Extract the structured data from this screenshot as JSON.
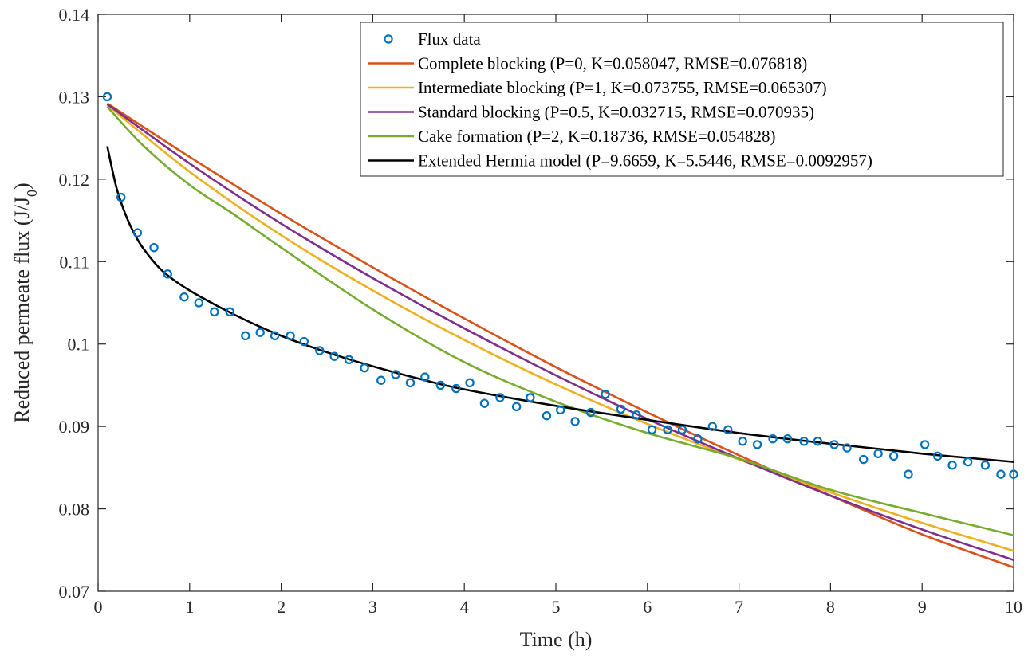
{
  "chart_data": {
    "type": "line",
    "xlabel": "Time (h)",
    "ylabel_main": "Reduced permeate flux (J/J",
    "ylabel_sub": "0",
    "ylabel_end": ")",
    "xlim": [
      0,
      10
    ],
    "ylim": [
      0.07,
      0.14
    ],
    "xticks": [
      0,
      1,
      2,
      3,
      4,
      5,
      6,
      7,
      8,
      9,
      10
    ],
    "yticks": [
      0.07,
      0.08,
      0.09,
      0.1,
      0.11,
      0.12,
      0.13,
      0.14
    ],
    "xtick_labels": [
      "0",
      "1",
      "2",
      "3",
      "4",
      "5",
      "6",
      "7",
      "8",
      "9",
      "10"
    ],
    "ytick_labels": [
      "0.07",
      "0.08",
      "0.09",
      "0.1",
      "0.11",
      "0.12",
      "0.13",
      "0.14"
    ],
    "grid": false,
    "legend_position": "top-right",
    "scatter": {
      "name": "Flux data",
      "color": "#0072BD",
      "points": [
        [
          0.1,
          0.13
        ],
        [
          0.25,
          0.1178
        ],
        [
          0.43,
          0.1135
        ],
        [
          0.61,
          0.1117
        ],
        [
          0.76,
          0.1085
        ],
        [
          0.94,
          0.1057
        ],
        [
          1.1,
          0.105
        ],
        [
          1.27,
          0.1039
        ],
        [
          1.44,
          0.1039
        ],
        [
          1.61,
          0.101
        ],
        [
          1.77,
          0.1014
        ],
        [
          1.93,
          0.101
        ],
        [
          2.1,
          0.101
        ],
        [
          2.25,
          0.1003
        ],
        [
          2.42,
          0.0992
        ],
        [
          2.58,
          0.0985
        ],
        [
          2.74,
          0.0981
        ],
        [
          2.91,
          0.0971
        ],
        [
          3.09,
          0.0956
        ],
        [
          3.25,
          0.0963
        ],
        [
          3.41,
          0.0953
        ],
        [
          3.57,
          0.096
        ],
        [
          3.74,
          0.095
        ],
        [
          3.91,
          0.0946
        ],
        [
          4.06,
          0.0953
        ],
        [
          4.22,
          0.0928
        ],
        [
          4.39,
          0.0935
        ],
        [
          4.57,
          0.0924
        ],
        [
          4.72,
          0.0935
        ],
        [
          4.9,
          0.0913
        ],
        [
          5.05,
          0.092
        ],
        [
          5.21,
          0.0906
        ],
        [
          5.38,
          0.0917
        ],
        [
          5.54,
          0.0939
        ],
        [
          5.71,
          0.0921
        ],
        [
          5.88,
          0.0914
        ],
        [
          6.05,
          0.0896
        ],
        [
          6.22,
          0.0896
        ],
        [
          6.38,
          0.0896
        ],
        [
          6.55,
          0.0885
        ],
        [
          6.71,
          0.09
        ],
        [
          6.88,
          0.0896
        ],
        [
          7.04,
          0.0882
        ],
        [
          7.2,
          0.0878
        ],
        [
          7.37,
          0.0885
        ],
        [
          7.53,
          0.0885
        ],
        [
          7.71,
          0.0882
        ],
        [
          7.86,
          0.0882
        ],
        [
          8.04,
          0.0878
        ],
        [
          8.18,
          0.0874
        ],
        [
          8.36,
          0.086
        ],
        [
          8.52,
          0.0867
        ],
        [
          8.69,
          0.0864
        ],
        [
          8.85,
          0.0842
        ],
        [
          9.03,
          0.0878
        ],
        [
          9.17,
          0.0864
        ],
        [
          9.33,
          0.0853
        ],
        [
          9.5,
          0.0857
        ],
        [
          9.69,
          0.0853
        ],
        [
          9.86,
          0.0842
        ],
        [
          10.0,
          0.0842
        ]
      ]
    },
    "series": [
      {
        "name": "Complete blocking (P=0, K=0.058047, RMSE=0.076818)",
        "color": "#D95319",
        "x": [
          0.1,
          1,
          2,
          3,
          4,
          5,
          6,
          7,
          8,
          9,
          10
        ],
        "y": [
          0.1292,
          0.1227,
          0.1158,
          0.1093,
          0.1031,
          0.0972,
          0.0917,
          0.0865,
          0.0816,
          0.0769,
          0.0729
        ]
      },
      {
        "name": "Intermediate blocking (P=1, K=0.073755, RMSE=0.065307)",
        "color": "#EDB120",
        "x": [
          0.1,
          1,
          2,
          3,
          4,
          5,
          6,
          7,
          8,
          9,
          10
        ],
        "y": [
          0.129,
          0.1209,
          0.1132,
          0.1065,
          0.1005,
          0.0951,
          0.0903,
          0.086,
          0.082,
          0.0783,
          0.0749
        ]
      },
      {
        "name": "Standard blocking (P=0.5, K=0.032715, RMSE=0.070935)",
        "color": "#7E2F8E",
        "x": [
          0.1,
          1,
          2,
          3,
          4,
          5,
          6,
          7,
          8,
          9,
          10
        ],
        "y": [
          0.1291,
          0.1219,
          0.1146,
          0.108,
          0.1019,
          0.0962,
          0.0909,
          0.0861,
          0.0816,
          0.0775,
          0.0738
        ]
      },
      {
        "name": "Cake formation (P=2, K=0.18736, RMSE=0.054828)",
        "color": "#77AC30",
        "x": [
          0.1,
          0.5,
          1,
          1.5,
          2,
          3,
          4,
          5,
          6,
          7,
          8,
          9,
          10
        ],
        "y": [
          0.1288,
          0.124,
          0.1193,
          0.1156,
          0.1117,
          0.1042,
          0.0978,
          0.093,
          0.0892,
          0.0861,
          0.0823,
          0.0795,
          0.0768
        ]
      },
      {
        "name": "Extended Hermia model (P=9.6659, K=5.5446, RMSE=0.0092957)",
        "color": "#000000",
        "x": [
          0.1,
          0.2,
          0.3,
          0.4,
          0.5,
          0.7,
          1,
          1.5,
          2,
          2.5,
          3,
          3.5,
          4,
          5,
          6,
          7,
          8,
          9,
          10
        ],
        "y": [
          0.124,
          0.119,
          0.1157,
          0.1133,
          0.1115,
          0.1089,
          0.1065,
          0.1035,
          0.101,
          0.099,
          0.0973,
          0.0958,
          0.0945,
          0.0925,
          0.0908,
          0.0892,
          0.0879,
          0.0867,
          0.0857
        ]
      }
    ]
  }
}
